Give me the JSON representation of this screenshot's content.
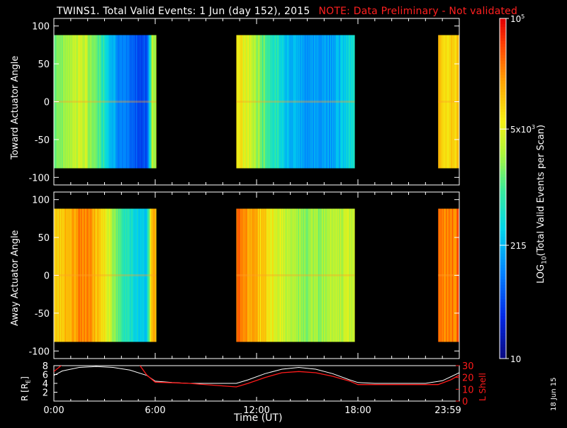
{
  "title": {
    "main": "TWINS1. Total Valid Events:  1 Jun (day 152), 2015",
    "note": "NOTE: Data Preliminary - Not validated"
  },
  "panels": {
    "top": {
      "ylabel": "Toward Actuator Angle",
      "yticks": [
        "100",
        "50",
        "0",
        "-50",
        "-100"
      ]
    },
    "middle": {
      "ylabel": "Away Actuator Angle",
      "yticks": [
        "100",
        "50",
        "0",
        "-50",
        "-100"
      ]
    },
    "bottom": {
      "ylabel_left": "R [R",
      "ylabel_left_sub": "E",
      "ylabel_left_close": "]",
      "ylabel_right": "L Shell",
      "yticks_left": [
        "8",
        "6",
        "4",
        "2"
      ],
      "yticks_right": [
        "30",
        "20",
        "10",
        "0"
      ]
    }
  },
  "xaxis": {
    "label": "Time (UT)",
    "ticks": [
      "0:00",
      "6:00",
      "12:00",
      "18:00",
      "23:59"
    ]
  },
  "colorbar": {
    "label_prefix": "LOG",
    "label_sub": "10",
    "label_suffix": "(Total Valid Events per Scan)",
    "ticks": [
      {
        "base": "10",
        "sup": "5",
        "value": 100000
      },
      {
        "base": "5x10",
        "sup": "3",
        "value": 5000
      },
      {
        "base": "215",
        "sup": "",
        "value": 215
      },
      {
        "base": "10",
        "sup": "",
        "value": 10
      }
    ],
    "range": [
      10,
      100000
    ]
  },
  "side_note": "18 Jun 15",
  "colors": {
    "background": "#000000",
    "axes": "#ffffff",
    "note": "#ff2020",
    "lshell": "#ff1a1a",
    "radius": "#ffffff"
  },
  "chart_data": [
    {
      "type": "heatmap",
      "panel": "Toward Actuator Angle",
      "x_unit": "hours UT",
      "ylim": [
        -110,
        110
      ],
      "xlim": [
        0,
        24
      ],
      "angle_range": [
        -88,
        88
      ],
      "segments": [
        {
          "start": 0.0,
          "end": 6.05,
          "profile": [
            [
              0.0,
              0.55
            ],
            [
              0.5,
              0.58
            ],
            [
              1.0,
              0.62
            ],
            [
              1.5,
              0.66
            ],
            [
              2.0,
              0.6
            ],
            [
              2.5,
              0.54
            ],
            [
              3.0,
              0.45
            ],
            [
              3.5,
              0.32
            ],
            [
              4.0,
              0.25
            ],
            [
              4.5,
              0.2
            ],
            [
              5.0,
              0.18
            ],
            [
              5.5,
              0.17
            ],
            [
              5.8,
              0.62
            ]
          ]
        },
        {
          "start": 10.8,
          "end": 17.8,
          "profile": [
            [
              10.8,
              0.72
            ],
            [
              11.3,
              0.68
            ],
            [
              11.8,
              0.62
            ],
            [
              12.3,
              0.55
            ],
            [
              12.8,
              0.48
            ],
            [
              13.3,
              0.42
            ],
            [
              13.8,
              0.36
            ],
            [
              14.5,
              0.32
            ],
            [
              15.2,
              0.28
            ],
            [
              16.0,
              0.3
            ],
            [
              16.8,
              0.33
            ],
            [
              17.5,
              0.4
            ]
          ]
        },
        {
          "start": 22.75,
          "end": 24.0,
          "profile": [
            [
              22.75,
              0.78
            ],
            [
              23.4,
              0.74
            ],
            [
              24.0,
              0.76
            ]
          ]
        }
      ]
    },
    {
      "type": "heatmap",
      "panel": "Away Actuator Angle",
      "x_unit": "hours UT",
      "ylim": [
        -110,
        110
      ],
      "xlim": [
        0,
        24
      ],
      "angle_range": [
        -88,
        88
      ],
      "segments": [
        {
          "start": 0.0,
          "end": 6.05,
          "profile": [
            [
              0.0,
              0.72
            ],
            [
              0.5,
              0.76
            ],
            [
              1.0,
              0.8
            ],
            [
              1.5,
              0.86
            ],
            [
              2.0,
              0.84
            ],
            [
              2.5,
              0.78
            ],
            [
              3.0,
              0.7
            ],
            [
              3.5,
              0.6
            ],
            [
              4.0,
              0.5
            ],
            [
              4.5,
              0.42
            ],
            [
              5.0,
              0.38
            ],
            [
              5.5,
              0.36
            ],
            [
              5.8,
              0.8
            ]
          ]
        },
        {
          "start": 10.8,
          "end": 17.8,
          "profile": [
            [
              10.8,
              0.86
            ],
            [
              11.3,
              0.84
            ],
            [
              11.8,
              0.8
            ],
            [
              12.3,
              0.76
            ],
            [
              12.8,
              0.7
            ],
            [
              13.3,
              0.66
            ],
            [
              13.8,
              0.62
            ],
            [
              14.5,
              0.6
            ],
            [
              15.2,
              0.58
            ],
            [
              16.0,
              0.6
            ],
            [
              16.8,
              0.62
            ],
            [
              17.5,
              0.64
            ]
          ]
        },
        {
          "start": 22.75,
          "end": 24.0,
          "profile": [
            [
              22.75,
              0.88
            ],
            [
              23.4,
              0.86
            ],
            [
              24.0,
              0.87
            ]
          ]
        }
      ]
    },
    {
      "type": "line",
      "panel": "orbit",
      "x_unit": "hours UT",
      "xlim": [
        0,
        24
      ],
      "series": [
        {
          "axis": "R [RE]",
          "ylim": [
            0,
            8
          ],
          "x": [
            0,
            0.5,
            1.5,
            2.5,
            3.5,
            4.5,
            5.5,
            6,
            7,
            8,
            9,
            10,
            10.8,
            11.5,
            12.5,
            13.5,
            14.5,
            15.5,
            16.5,
            17.5,
            18,
            19,
            20,
            21,
            22,
            23,
            24
          ],
          "y": [
            5.8,
            6.8,
            7.6,
            7.8,
            7.6,
            7.0,
            5.8,
            4.5,
            4.2,
            4.0,
            4.0,
            4.0,
            4.0,
            4.8,
            6.2,
            7.2,
            7.6,
            7.2,
            6.2,
            4.8,
            4.2,
            4.0,
            4.0,
            4.0,
            4.0,
            4.6,
            6.4
          ]
        },
        {
          "axis": "L Shell",
          "ylim": [
            0,
            30
          ],
          "x": [
            0,
            0.6,
            5.0,
            5.5,
            6.0,
            8.0,
            10.8,
            11.5,
            12.5,
            13.5,
            14.5,
            15.5,
            16.5,
            17.5,
            18,
            20,
            22.75,
            23.5,
            24
          ],
          "y": [
            25,
            32,
            32,
            22,
            16,
            15,
            12,
            15,
            20,
            24,
            25,
            24,
            21,
            17,
            14,
            14,
            14,
            18,
            22
          ]
        }
      ]
    }
  ]
}
